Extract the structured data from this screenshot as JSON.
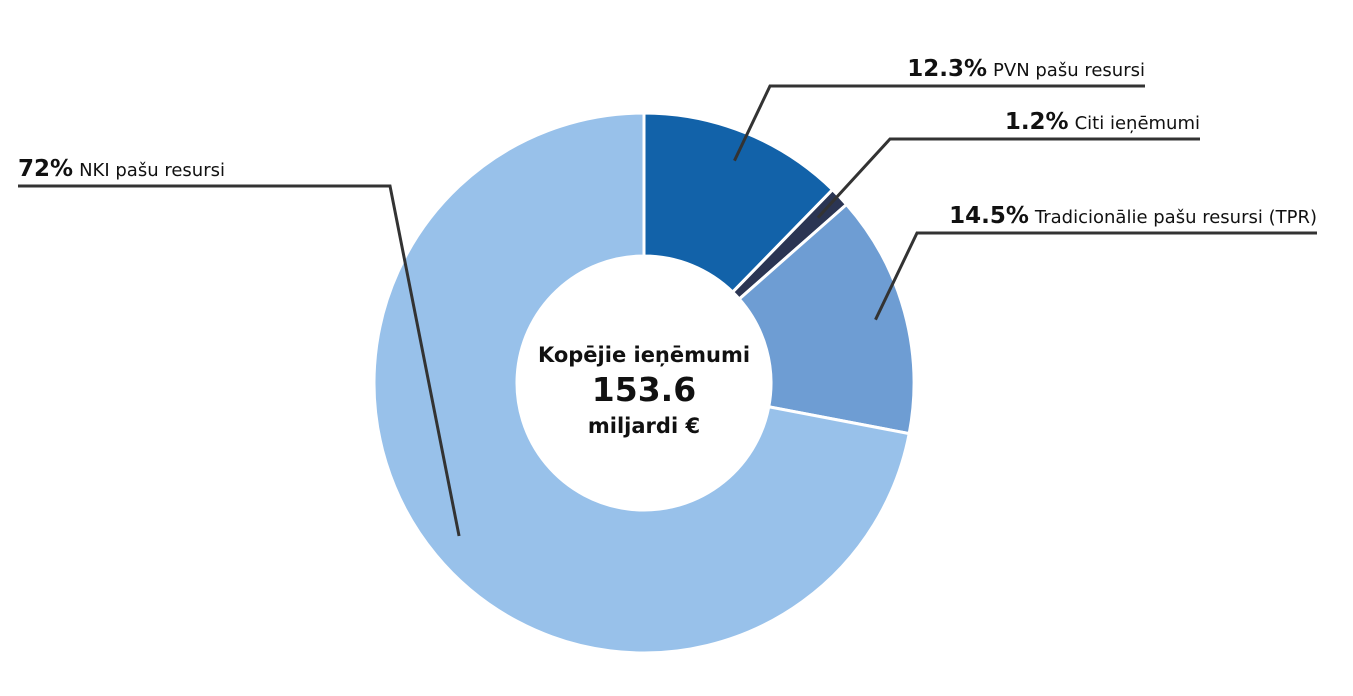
{
  "chart_data": {
    "type": "donut",
    "categories": [
      "PVN pašu resursi",
      "Citi ieņēmumi",
      "Tradicionālie pašu resursi (TPR)",
      "NKI pašu resursi"
    ],
    "values": [
      12.3,
      1.2,
      14.5,
      72
    ],
    "value_labels": [
      "12.3%",
      "1.2%",
      "14.5%",
      "72%"
    ],
    "colors": [
      "#1262a9",
      "#2b3553",
      "#6e9dd3",
      "#98c1ea"
    ],
    "center_label": "Kopējie ieņēmumi",
    "total": 153.6,
    "total_unit": "miljardi €"
  }
}
